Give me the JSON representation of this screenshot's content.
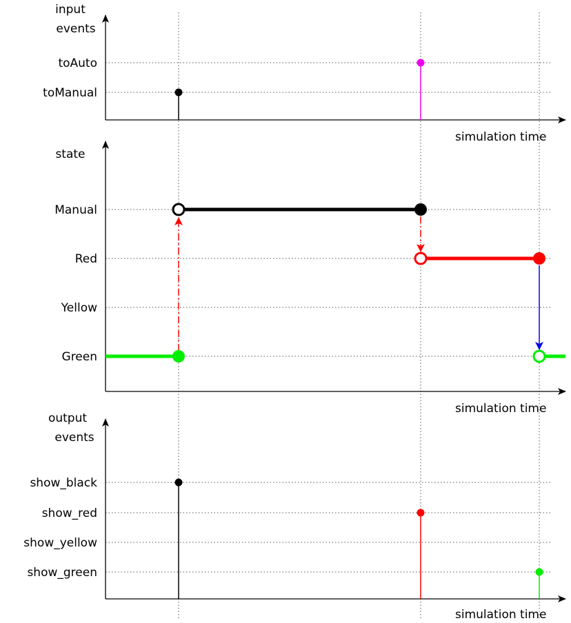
{
  "colors": {
    "black": "#000000",
    "magenta": "#ee00ee",
    "red": "#ff0000",
    "green": "#00ee00",
    "blue": "#0000ee"
  },
  "axis_label": "simulation time",
  "input_panel": {
    "y_label_line1": "input",
    "y_label_line2": "events",
    "levels": [
      "toManual",
      "toAuto"
    ],
    "events": [
      {
        "level": "toManual",
        "time": "t1",
        "color": "black"
      },
      {
        "level": "toAuto",
        "time": "t2",
        "color": "magenta"
      }
    ]
  },
  "state_panel": {
    "y_label": "state",
    "levels": [
      "Green",
      "Yellow",
      "Red",
      "Manual"
    ],
    "segments": [
      {
        "state": "Green",
        "from": "start",
        "to": "t1",
        "color": "green"
      },
      {
        "state": "Manual",
        "from": "t1",
        "to": "t2",
        "color": "black"
      },
      {
        "state": "Red",
        "from": "t2",
        "to": "t3",
        "color": "red"
      },
      {
        "state": "Green",
        "from": "t3",
        "to": "end",
        "color": "green"
      }
    ],
    "transitions": [
      {
        "from": "Green",
        "to": "Manual",
        "time": "t1",
        "color": "red",
        "style": "dash-dot"
      },
      {
        "from": "Manual",
        "to": "Red",
        "time": "t2",
        "color": "red",
        "style": "dash-dot"
      },
      {
        "from": "Red",
        "to": "Green",
        "time": "t3",
        "color": "blue",
        "style": "solid"
      }
    ]
  },
  "output_panel": {
    "y_label_line1": "output",
    "y_label_line2": "events",
    "levels": [
      "show_green",
      "show_yellow",
      "show_red",
      "show_black"
    ],
    "events": [
      {
        "level": "show_black",
        "time": "t1",
        "color": "black"
      },
      {
        "level": "show_red",
        "time": "t2",
        "color": "red"
      },
      {
        "level": "show_green",
        "time": "t3",
        "color": "green"
      }
    ]
  }
}
